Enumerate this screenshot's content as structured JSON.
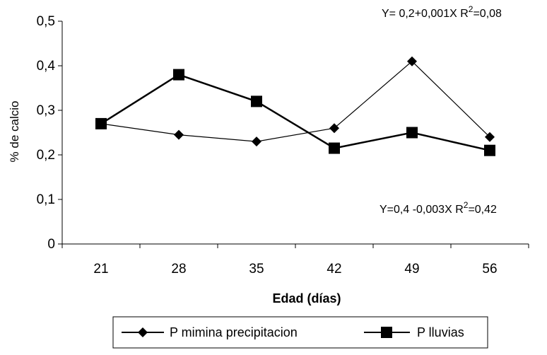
{
  "chart_data": {
    "type": "line",
    "xlabel": "Edad (días)",
    "ylabel": "% de calcio",
    "categories": [
      "21",
      "28",
      "35",
      "42",
      "49",
      "56"
    ],
    "yticks": [
      "0",
      "0,1",
      "0,2",
      "0,3",
      "0,4",
      "0,5"
    ],
    "ylim": [
      0,
      0.5
    ],
    "grid": false,
    "legend_position": "bottom",
    "series": [
      {
        "name": "P mimina precipitacion",
        "marker": "diamond",
        "values": [
          0.27,
          0.245,
          0.23,
          0.26,
          0.41,
          0.24
        ]
      },
      {
        "name": "P lluvias",
        "marker": "square",
        "values": [
          0.27,
          0.38,
          0.32,
          0.215,
          0.25,
          0.21
        ]
      }
    ],
    "annotations": {
      "top": {
        "base": "Y= 0,2+0,001X R",
        "sup": "2",
        "tail": "=0,08"
      },
      "bottom": {
        "base": "Y=0,4 -0,003X R",
        "sup": "2",
        "tail": "=0,42"
      }
    }
  }
}
